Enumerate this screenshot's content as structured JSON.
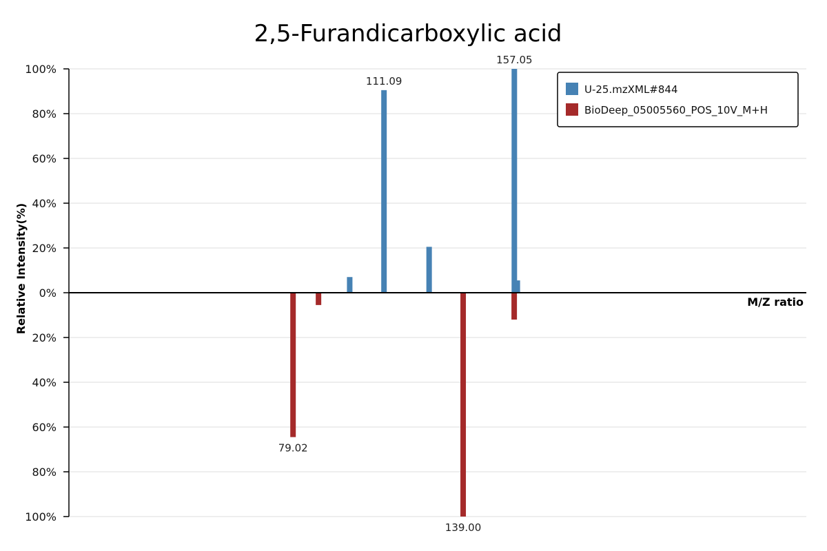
{
  "chart_data": {
    "type": "bar",
    "title": "2,5-Furandicarboxylic acid",
    "xlabel": "M/Z ratio",
    "ylabel": "Relative Intensity(%)",
    "xlim": [
      0,
      260
    ],
    "ylim": [
      -100,
      100
    ],
    "yticks": [
      {
        "value": 100,
        "label": "100%"
      },
      {
        "value": 80,
        "label": "80%"
      },
      {
        "value": 60,
        "label": "60%"
      },
      {
        "value": 40,
        "label": "40%"
      },
      {
        "value": 20,
        "label": "20%"
      },
      {
        "value": 0,
        "label": "0%"
      },
      {
        "value": -20,
        "label": "20%"
      },
      {
        "value": -40,
        "label": "40%"
      },
      {
        "value": -60,
        "label": "60%"
      },
      {
        "value": -80,
        "label": "80%"
      },
      {
        "value": -100,
        "label": "100%"
      }
    ],
    "grid": true,
    "legend_position": "top-right",
    "series": [
      {
        "name": "U-25.mzXML#844",
        "color": "#4682b4",
        "direction": "up",
        "peaks": [
          {
            "mz": 99.0,
            "intensity": 7,
            "label": ""
          },
          {
            "mz": 111.09,
            "intensity": 90.5,
            "label": "111.09"
          },
          {
            "mz": 127.0,
            "intensity": 20.5,
            "label": ""
          },
          {
            "mz": 157.05,
            "intensity": 100,
            "label": "157.05"
          },
          {
            "mz": 158.1,
            "intensity": 5.5,
            "label": ""
          }
        ]
      },
      {
        "name": "BioDeep_05005560_POS_10V_M+H",
        "color": "#a52a2a",
        "direction": "down",
        "peaks": [
          {
            "mz": 79.02,
            "intensity": 64.5,
            "label": "79.02"
          },
          {
            "mz": 88.0,
            "intensity": 5.5,
            "label": ""
          },
          {
            "mz": 139.0,
            "intensity": 100,
            "label": "139.00"
          },
          {
            "mz": 157.0,
            "intensity": 12,
            "label": ""
          }
        ]
      }
    ]
  }
}
